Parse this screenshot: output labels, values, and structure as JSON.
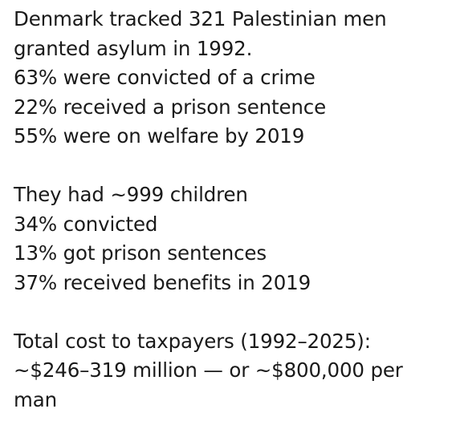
{
  "post": {
    "paragraph_1": [
      "Denmark tracked 321 Palestinian men",
      "granted asylum in 1992.",
      "63% were convicted of a crime",
      "22% received a prison sentence",
      "55% were on welfare by 2019"
    ],
    "paragraph_2": [
      "They had ~999 children",
      "34% convicted",
      "13% got prison sentences",
      "37% received benefits in 2019"
    ],
    "paragraph_3": [
      "Total cost to taxpayers (1992–2025):",
      "~$246–319 million — or ~$800,000 per",
      "man"
    ]
  },
  "colors": {
    "background": "#ffffff",
    "text": "#1a1a1a"
  }
}
